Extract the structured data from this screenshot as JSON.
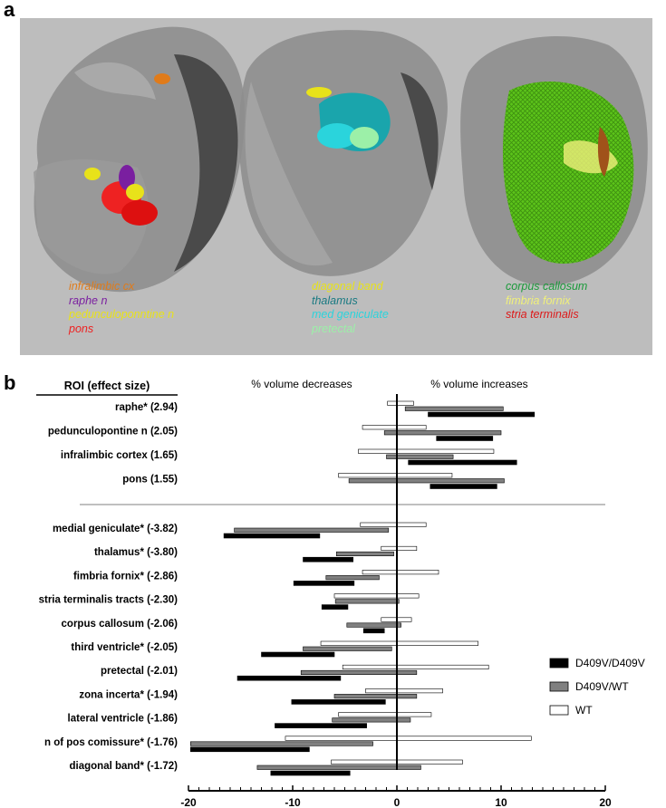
{
  "panel_a": {
    "letter": "a",
    "legend_groups": [
      {
        "items": [
          {
            "text": "infralimbic cx",
            "color": "#e07b1a"
          },
          {
            "text": "raphe n",
            "color": "#7a1fa0"
          },
          {
            "text": "pedunculoponntine n",
            "color": "#e8e21a"
          },
          {
            "text": "pons",
            "color": "#ee2222"
          }
        ]
      },
      {
        "items": [
          {
            "text": "diagonal band",
            "color": "#e8e21a"
          },
          {
            "text": "thalamus",
            "color": "#1a7a82"
          },
          {
            "text": "med geniculate",
            "color": "#2ad4dc"
          },
          {
            "text": "pretectal",
            "color": "#9cf0a8"
          }
        ]
      },
      {
        "items": [
          {
            "text": "corpus callosum",
            "color": "#1a9a3a"
          },
          {
            "text": "fimbria fornix",
            "color": "#f0f07a"
          },
          {
            "text": "stria terminalis",
            "color": "#dd1a1a"
          }
        ]
      }
    ]
  },
  "panel_b": {
    "letter": "b",
    "header_roi": "ROI (effect size)",
    "header_decreases": "% volume decreases",
    "header_increases": "% volume increases"
  },
  "chart_data": {
    "type": "bar",
    "orientation": "horizontal-floating",
    "xlim": [
      -20,
      20
    ],
    "x_ticks": [
      -20,
      -10,
      0,
      10,
      20
    ],
    "x_tick_labels": [
      "-20",
      "-10",
      "0",
      "10",
      "20"
    ],
    "legend_placement": "right",
    "series": [
      {
        "name": "WT",
        "color": "#ffffff"
      },
      {
        "name": "D409V/WT",
        "color": "#808080"
      },
      {
        "name": "D409V/D409V",
        "color": "#000000"
      }
    ],
    "legend_order": [
      "D409V/D409V",
      "D409V/WT",
      "WT"
    ],
    "categories": [
      {
        "label": "raphe* (2.94)",
        "WT": [
          -0.9,
          1.6
        ],
        "D409V/WT": [
          0.8,
          10.2
        ],
        "D409V/D409V": [
          3.0,
          13.2
        ]
      },
      {
        "label": "pedunculopontine n (2.05)",
        "WT": [
          -3.3,
          2.8
        ],
        "D409V/WT": [
          -1.2,
          10.0
        ],
        "D409V/D409V": [
          3.8,
          9.2
        ]
      },
      {
        "label": "infralimbic cortex (1.65)",
        "WT": [
          -3.7,
          9.3
        ],
        "D409V/WT": [
          -1.0,
          5.4
        ],
        "D409V/D409V": [
          1.1,
          11.5
        ]
      },
      {
        "label": "pons (1.55)",
        "WT": [
          -5.6,
          5.3
        ],
        "D409V/WT": [
          -4.6,
          10.3
        ],
        "D409V/D409V": [
          3.2,
          9.6
        ]
      },
      {
        "label": "medial geniculate* (-3.82)",
        "WT": [
          -3.5,
          2.8
        ],
        "D409V/WT": [
          -15.6,
          -0.8
        ],
        "D409V/D409V": [
          -16.6,
          -7.4
        ]
      },
      {
        "label": "thalamus* (-3.80)",
        "WT": [
          -1.5,
          1.9
        ],
        "D409V/WT": [
          -5.8,
          -0.3
        ],
        "D409V/D409V": [
          -9.0,
          -4.2
        ]
      },
      {
        "label": "fimbria fornix* (-2.86)",
        "WT": [
          -3.3,
          4.0
        ],
        "D409V/WT": [
          -6.8,
          -1.7
        ],
        "D409V/D409V": [
          -9.9,
          -4.1
        ]
      },
      {
        "label": "stria terminalis tracts (-2.30)",
        "WT": [
          -6.0,
          2.1
        ],
        "D409V/WT": [
          -5.9,
          0.2
        ],
        "D409V/D409V": [
          -7.2,
          -4.7
        ]
      },
      {
        "label": "corpus callosum (-2.06)",
        "WT": [
          -1.5,
          1.4
        ],
        "D409V/WT": [
          -4.8,
          0.4
        ],
        "D409V/D409V": [
          -3.2,
          -1.2
        ]
      },
      {
        "label": "third ventricle* (-2.05)",
        "WT": [
          -7.3,
          7.8
        ],
        "D409V/WT": [
          -9.0,
          -0.5
        ],
        "D409V/D409V": [
          -13.0,
          -6.0
        ]
      },
      {
        "label": "pretectal (-2.01)",
        "WT": [
          -5.2,
          8.8
        ],
        "D409V/WT": [
          -9.2,
          1.9
        ],
        "D409V/D409V": [
          -15.3,
          -5.4
        ]
      },
      {
        "label": "zona incerta* (-1.94)",
        "WT": [
          -3.0,
          4.4
        ],
        "D409V/WT": [
          -6.0,
          1.9
        ],
        "D409V/D409V": [
          -10.1,
          -1.1
        ]
      },
      {
        "label": "lateral ventricle (-1.86)",
        "WT": [
          -5.6,
          3.3
        ],
        "D409V/WT": [
          -6.2,
          1.3
        ],
        "D409V/D409V": [
          -11.7,
          -2.9
        ]
      },
      {
        "label": "n of pos comissure* (-1.76)",
        "WT": [
          -10.7,
          12.9
        ],
        "D409V/WT": [
          -19.8,
          -2.3
        ],
        "D409V/D409V": [
          -19.8,
          -8.4
        ]
      },
      {
        "label": "diagonal band* (-1.72)",
        "WT": [
          -6.3,
          6.3
        ],
        "D409V/WT": [
          -13.4,
          2.3
        ],
        "D409V/D409V": [
          -12.1,
          -4.5
        ]
      }
    ]
  }
}
